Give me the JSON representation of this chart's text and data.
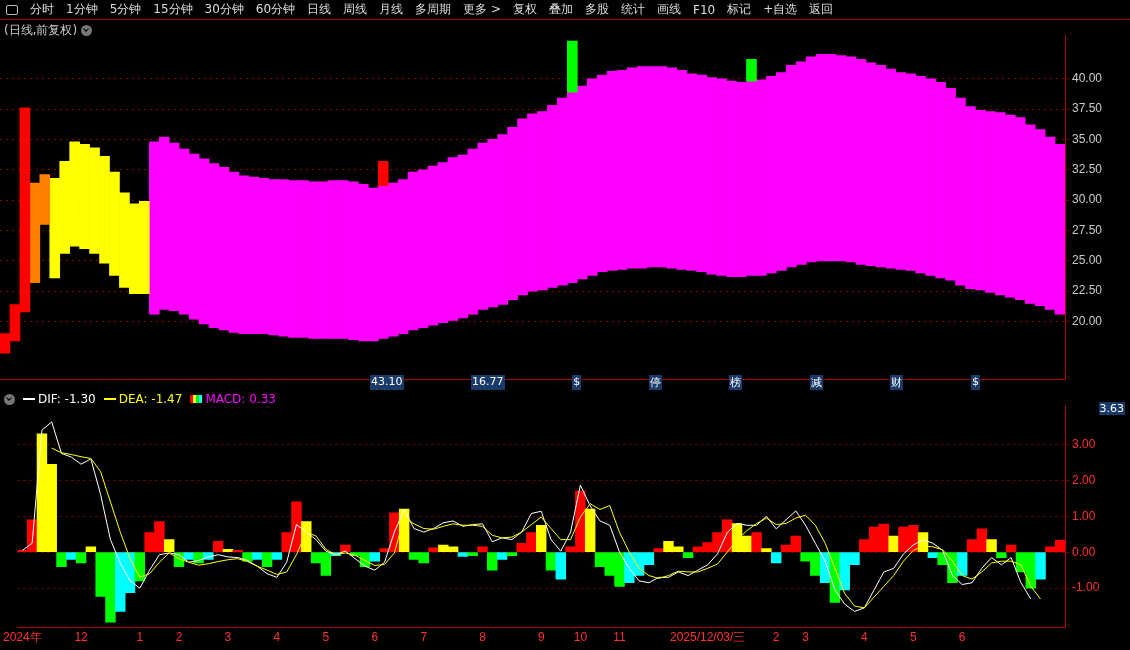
{
  "chart_data": [
    {
      "type": "other",
      "annotations": [
        "分时",
        "1分钟",
        "5分钟",
        "15分钟",
        "30分钟",
        "60分钟",
        "日线",
        "周线",
        "月线",
        "多周期",
        "更多 >",
        "复权",
        "叠加",
        "多股",
        "统计",
        "画线",
        "F10",
        "标记",
        "+自选",
        "返回"
      ]
    },
    {
      "type": "bar",
      "title": "(日线,前复权)",
      "tick_labels": "y",
      "grid": "y",
      "ylim": [
        15.2,
        43.6
      ],
      "yticks": [
        {
          "value": 20,
          "label": "20.00"
        },
        {
          "value": 22.5,
          "label": "22.50"
        },
        {
          "value": 25,
          "label": "25.00"
        },
        {
          "value": 27.5,
          "label": "27.50"
        },
        {
          "value": 30,
          "label": "30.00"
        },
        {
          "value": 32.5,
          "label": "32.50"
        },
        {
          "value": 35,
          "label": "35.00"
        },
        {
          "value": 37.5,
          "label": "37.50"
        },
        {
          "value": 40,
          "label": "40.00"
        }
      ],
      "annotations": [
        "43.10",
        "16.77",
        "$",
        "停",
        "榜",
        "减",
        "财",
        "$"
      ],
      "categories": [
        null,
        null,
        null,
        null,
        null,
        null,
        null,
        null,
        null,
        null,
        null,
        null,
        null,
        null,
        null,
        null,
        null,
        null,
        null,
        null,
        null,
        null,
        null,
        null,
        null,
        null,
        null,
        null,
        null,
        null,
        null,
        null,
        null,
        null,
        null,
        null,
        null,
        null,
        null,
        null,
        null,
        null,
        null,
        null,
        null,
        null,
        null,
        null,
        null,
        null,
        null,
        null,
        null,
        null,
        null,
        null,
        null,
        null,
        null,
        null,
        null,
        null,
        null,
        null,
        null,
        null,
        null,
        null,
        null,
        null,
        null,
        null,
        null,
        null,
        null,
        null,
        null,
        null,
        null,
        null,
        null,
        null,
        null,
        null,
        null,
        null,
        null,
        null,
        null,
        null,
        null,
        null,
        null,
        null,
        null,
        null,
        null,
        null,
        null,
        null,
        null,
        null,
        null,
        null,
        null,
        null,
        null
      ],
      "series": [
        {
          "color": "#ff00ff",
          "base": [
            null,
            null,
            null,
            null,
            null,
            null,
            null,
            null,
            null,
            null,
            null,
            null,
            null,
            null,
            null,
            20.6,
            21.0,
            20.9,
            20.6,
            20.2,
            19.8,
            19.5,
            19.3,
            19.1,
            19.0,
            19.0,
            19.0,
            18.9,
            18.8,
            18.7,
            18.7,
            18.6,
            18.6,
            18.6,
            18.6,
            18.5,
            18.4,
            18.4,
            18.6,
            18.8,
            19.0,
            19.3,
            19.5,
            19.7,
            19.9,
            20.1,
            20.3,
            20.6,
            21.0,
            21.2,
            21.4,
            21.8,
            22.2,
            22.5,
            22.6,
            22.8,
            23.0,
            23.2,
            23.5,
            23.8,
            24.1,
            24.2,
            24.3,
            24.4,
            24.4,
            24.5,
            24.5,
            24.4,
            24.3,
            24.2,
            24.1,
            23.9,
            23.8,
            23.7,
            23.7,
            23.8,
            23.8,
            24.0,
            24.2,
            24.5,
            24.7,
            24.9,
            25.0,
            25.0,
            25.0,
            24.9,
            24.7,
            24.6,
            24.5,
            24.4,
            24.3,
            24.2,
            24.0,
            23.8,
            23.6,
            23.4,
            23.0,
            22.7,
            22.6,
            22.4,
            22.2,
            22.0,
            21.8,
            21.5,
            21.3,
            21.0,
            20.6
          ],
          "values": [
            null,
            null,
            null,
            null,
            null,
            null,
            null,
            null,
            null,
            null,
            null,
            null,
            null,
            null,
            null,
            14.2,
            14.2,
            13.8,
            13.6,
            13.6,
            13.6,
            13.5,
            13.4,
            13.2,
            13.0,
            12.9,
            12.8,
            12.8,
            12.9,
            12.9,
            12.9,
            12.9,
            12.9,
            13.0,
            13.0,
            13.0,
            12.9,
            12.6,
            12.6,
            12.6,
            12.7,
            13.0,
            13.0,
            13.1,
            13.2,
            13.4,
            13.4,
            13.6,
            13.7,
            13.8,
            14.0,
            14.2,
            14.5,
            14.6,
            14.7,
            15.0,
            15.4,
            15.7,
            15.9,
            16.2,
            16.2,
            16.4,
            16.4,
            16.5,
            16.6,
            16.5,
            16.5,
            16.5,
            16.4,
            16.2,
            16.2,
            16.2,
            16.2,
            16.1,
            16.0,
            16.0,
            16.1,
            16.2,
            16.3,
            16.6,
            16.7,
            16.9,
            17.0,
            17.0,
            16.9,
            16.9,
            16.9,
            16.7,
            16.6,
            16.4,
            16.2,
            16.2,
            16.2,
            16.2,
            16.1,
            15.8,
            15.4,
            15.0,
            14.8,
            14.9,
            15.0,
            15.0,
            15.0,
            14.7,
            14.5,
            14.2,
            14.0
          ]
        },
        {
          "color": "#ffff00",
          "base": [
            null,
            null,
            null,
            null,
            null,
            23.6,
            25.6,
            26.2,
            26.0,
            25.6,
            24.8,
            23.8,
            22.8,
            22.3,
            22.3,
            null,
            null,
            null,
            null,
            null,
            null,
            null,
            null,
            null,
            null,
            null,
            null,
            null,
            null,
            null,
            null,
            null,
            null,
            null,
            null,
            null,
            null,
            null,
            null,
            null,
            null,
            null,
            null,
            null,
            null,
            null,
            null,
            null,
            null,
            null,
            null,
            null,
            null,
            null,
            null,
            null,
            null,
            null,
            null,
            null,
            null,
            null,
            null,
            null,
            null,
            null,
            null,
            null,
            null,
            null,
            null,
            null,
            null,
            null,
            null,
            null,
            null,
            null,
            null,
            null,
            null,
            null,
            null,
            null,
            null,
            null,
            null,
            null,
            null,
            null,
            null,
            null,
            null,
            null,
            null,
            null,
            null,
            null,
            null,
            null,
            null,
            null,
            null,
            null,
            null,
            null,
            null
          ],
          "values": [
            null,
            null,
            null,
            null,
            null,
            8.2,
            7.6,
            8.6,
            8.6,
            8.7,
            8.8,
            8.5,
            7.8,
            7.4,
            7.6,
            null,
            null,
            null,
            null,
            null,
            null,
            null,
            null,
            null,
            null,
            null,
            null,
            null,
            null,
            null,
            null,
            null,
            null,
            null,
            null,
            null,
            null,
            null,
            null,
            null,
            null,
            null,
            null,
            null,
            null,
            null,
            null,
            null,
            null,
            null,
            null,
            null,
            null,
            null,
            null,
            null,
            null,
            null,
            null,
            null,
            null,
            null,
            null,
            null,
            null,
            null,
            null,
            null,
            null,
            null,
            null,
            null,
            null,
            null,
            null,
            null,
            null,
            null,
            null,
            null,
            null,
            null,
            null,
            null,
            null,
            null,
            null,
            null,
            null,
            null,
            null,
            null,
            null,
            null,
            null,
            null,
            null,
            null,
            null,
            null,
            null,
            null,
            null,
            null,
            null,
            null,
            null
          ]
        },
        {
          "color": "#ff8000",
          "base": [
            null,
            null,
            null,
            23.2,
            28.0,
            null,
            null,
            null,
            null,
            null,
            null,
            null,
            null,
            null,
            null,
            null,
            null,
            null,
            null,
            null,
            null,
            null,
            null,
            null,
            null,
            null,
            null,
            null,
            null,
            null,
            null,
            null,
            null,
            null,
            null,
            null,
            null,
            null,
            null,
            null,
            null,
            null,
            null,
            null,
            null,
            null,
            null,
            null,
            null,
            null,
            null,
            null,
            null,
            null,
            null,
            null,
            null,
            null,
            null,
            null,
            null,
            null,
            null,
            null,
            null,
            null,
            null,
            null,
            null,
            null,
            null,
            null,
            null,
            null,
            null,
            null,
            null,
            null,
            null,
            null,
            null,
            null,
            null,
            null,
            null,
            null,
            null,
            null,
            null,
            null,
            null,
            null,
            null,
            null,
            null,
            null,
            null,
            null,
            null,
            null,
            null,
            null,
            null,
            null,
            null,
            null,
            null
          ],
          "values": [
            null,
            null,
            null,
            8.2,
            4.1,
            null,
            null,
            null,
            null,
            null,
            null,
            null,
            null,
            null,
            null,
            null,
            null,
            null,
            null,
            null,
            null,
            null,
            null,
            null,
            null,
            null,
            null,
            null,
            null,
            null,
            null,
            null,
            null,
            null,
            null,
            null,
            null,
            null,
            null,
            null,
            null,
            null,
            null,
            null,
            null,
            null,
            null,
            null,
            null,
            null,
            null,
            null,
            null,
            null,
            null,
            null,
            null,
            null,
            null,
            null,
            null,
            null,
            null,
            null,
            null,
            null,
            null,
            null,
            null,
            null,
            null,
            null,
            null,
            null,
            null,
            null,
            null,
            null,
            null,
            null,
            null,
            null,
            null,
            null,
            null,
            null,
            null,
            null,
            null,
            null,
            null,
            null,
            null,
            null,
            null,
            null,
            null,
            null,
            null,
            null,
            null,
            null,
            null,
            null,
            null,
            null,
            null
          ]
        },
        {
          "color": "#ff0000",
          "base": [
            17.4,
            18.4,
            20.8,
            null,
            null,
            null,
            null,
            null,
            null,
            null,
            null,
            null,
            null,
            null,
            null,
            null,
            null,
            null,
            null,
            null,
            null,
            null,
            null,
            null,
            null,
            null,
            null,
            null,
            null,
            null,
            null,
            null,
            null,
            null,
            null,
            null,
            null,
            null,
            31.2,
            null,
            null,
            null,
            null,
            null,
            null,
            null,
            null,
            null,
            null,
            null,
            null,
            null,
            null,
            null,
            null,
            null,
            null,
            null,
            null,
            null,
            null,
            null,
            null,
            null,
            null,
            null,
            null,
            null,
            null,
            null,
            null,
            null,
            null,
            null,
            null,
            null,
            null,
            null,
            null,
            null,
            null,
            null,
            null,
            null,
            null,
            null,
            null,
            null,
            null,
            null,
            null,
            null,
            null,
            null,
            null,
            null,
            null,
            null,
            null,
            null,
            null,
            null,
            null,
            null,
            null,
            null,
            null
          ],
          "values": [
            1.6,
            3.0,
            16.8,
            null,
            null,
            null,
            null,
            null,
            null,
            null,
            null,
            null,
            null,
            null,
            null,
            null,
            null,
            null,
            null,
            null,
            null,
            null,
            null,
            null,
            null,
            null,
            null,
            null,
            null,
            null,
            null,
            null,
            null,
            null,
            null,
            null,
            null,
            null,
            2.0,
            null,
            null,
            null,
            null,
            null,
            null,
            null,
            null,
            null,
            null,
            null,
            null,
            null,
            null,
            null,
            null,
            null,
            null,
            null,
            null,
            null,
            null,
            null,
            null,
            null,
            null,
            null,
            null,
            null,
            null,
            null,
            null,
            null,
            null,
            null,
            null,
            null,
            null,
            null,
            null,
            null,
            null,
            null,
            null,
            null,
            null,
            null,
            null,
            null,
            null,
            null,
            null,
            null,
            null,
            null,
            null,
            null,
            null,
            null,
            null,
            null,
            null,
            null,
            null,
            null,
            null,
            null,
            null
          ]
        },
        {
          "color": "#00ff00",
          "base": [
            null,
            null,
            null,
            null,
            null,
            null,
            null,
            null,
            null,
            null,
            null,
            null,
            null,
            null,
            null,
            null,
            null,
            null,
            null,
            null,
            null,
            null,
            null,
            null,
            null,
            null,
            null,
            null,
            null,
            null,
            null,
            null,
            null,
            null,
            null,
            null,
            null,
            null,
            null,
            null,
            null,
            null,
            null,
            null,
            null,
            null,
            null,
            null,
            null,
            null,
            null,
            null,
            null,
            null,
            null,
            null,
            null,
            38.9,
            null,
            null,
            null,
            null,
            null,
            null,
            null,
            null,
            null,
            null,
            null,
            null,
            null,
            null,
            null,
            null,
            null,
            39.8,
            null,
            null,
            null,
            null,
            null,
            null,
            null,
            null,
            null,
            null,
            null,
            null,
            null,
            null,
            null,
            null,
            null,
            null,
            null,
            null,
            null,
            null,
            null,
            null,
            null,
            null,
            null,
            null,
            null,
            null,
            null
          ],
          "values": [
            null,
            null,
            null,
            null,
            null,
            null,
            null,
            null,
            null,
            null,
            null,
            null,
            null,
            null,
            null,
            null,
            null,
            null,
            null,
            null,
            null,
            null,
            null,
            null,
            null,
            null,
            null,
            null,
            null,
            null,
            null,
            null,
            null,
            null,
            null,
            null,
            null,
            null,
            null,
            null,
            null,
            null,
            null,
            null,
            null,
            null,
            null,
            null,
            null,
            null,
            null,
            null,
            null,
            null,
            null,
            null,
            null,
            4.2,
            null,
            null,
            null,
            null,
            null,
            null,
            null,
            null,
            null,
            null,
            null,
            null,
            null,
            null,
            null,
            null,
            null,
            1.8,
            null,
            null,
            null,
            null,
            null,
            null,
            null,
            null,
            null,
            null,
            null,
            null,
            null,
            null,
            null,
            null,
            null,
            null,
            null,
            null,
            null,
            null,
            null,
            null,
            null,
            null,
            null,
            null,
            null,
            null,
            null
          ]
        }
      ]
    },
    {
      "type": "bar",
      "legend": "top left",
      "grid": "y",
      "marker": "none",
      "ylim": [
        -2.1,
        4.1
      ],
      "yticks": [
        {
          "value": -1,
          "label": "-1.00"
        },
        {
          "value": 0,
          "label": "0.00"
        },
        {
          "value": 1,
          "label": "1.00"
        },
        {
          "value": 2,
          "label": "2.00"
        },
        {
          "value": 3,
          "label": "3.00"
        }
      ],
      "annotations": [
        "3.63"
      ],
      "categories": [
        "2024年",
        null,
        null,
        null,
        null,
        null,
        "12",
        null,
        null,
        null,
        null,
        null,
        "1",
        null,
        null,
        null,
        "2",
        null,
        null,
        null,
        null,
        "3",
        null,
        null,
        null,
        null,
        "4",
        null,
        null,
        null,
        null,
        "5",
        null,
        null,
        null,
        null,
        "6",
        null,
        null,
        null,
        null,
        "7",
        null,
        null,
        null,
        null,
        null,
        "8",
        null,
        null,
        null,
        null,
        null,
        "9",
        null,
        null,
        null,
        "10",
        null,
        null,
        null,
        "11",
        null,
        null,
        null,
        null,
        null,
        null,
        null,
        null,
        "2025/12/03/三",
        null,
        null,
        null,
        null,
        null,
        null,
        "2",
        null,
        null,
        "3",
        null,
        null,
        null,
        null,
        null,
        "4",
        null,
        null,
        null,
        null,
        "5",
        null,
        null,
        null,
        null,
        "6",
        null,
        null,
        null,
        null,
        null,
        null,
        null,
        null,
        null,
        null
      ],
      "series": [
        {
          "name": "MACD: 0.33",
          "color": "#ff00ff",
          "type": "bar",
          "values": [
            0.05,
            0.9,
            3.3,
            2.45,
            -0.4,
            -0.2,
            -0.3,
            0.15,
            -1.23,
            -1.95,
            -1.65,
            -1.13,
            -0.8,
            0.55,
            0.85,
            0.35,
            -0.4,
            -0.2,
            -0.3,
            -0.2,
            0.3,
            0.08,
            0.05,
            -0.25,
            -0.2,
            -0.4,
            -0.2,
            0.55,
            1.4,
            0.85,
            -0.3,
            -0.65,
            -0.1,
            0.2,
            -0.1,
            -0.4,
            -0.25,
            0.1,
            1.1,
            1.2,
            -0.2,
            -0.3,
            0.12,
            0.2,
            0.15,
            -0.12,
            -0.1,
            0.15,
            -0.5,
            -0.2,
            -0.1,
            0.25,
            0.55,
            0.75,
            -0.5,
            -0.75,
            0.15,
            1.7,
            1.2,
            -0.4,
            -0.65,
            -0.95,
            -0.85,
            -0.65,
            -0.35,
            0.1,
            0.3,
            0.15,
            -0.15,
            0.15,
            0.27,
            0.55,
            0.9,
            0.8,
            0.45,
            0.55,
            0.1,
            -0.3,
            0.2,
            0.45,
            -0.25,
            -0.65,
            -0.85,
            -1.4,
            -1.05,
            -0.35,
            0.35,
            0.7,
            0.78,
            0.45,
            0.7,
            0.75,
            0.55,
            -0.15,
            -0.35,
            -0.85,
            -0.65,
            0.35,
            0.65,
            0.35,
            -0.15,
            0.2,
            -0.55,
            -1.0,
            -0.75,
            0.15,
            0.33
          ],
          "colors": [
            "#ff0000",
            "#ff0000",
            "#ffff00",
            "#ffff00",
            "#00ff00",
            "#00ffff",
            "#00ff00",
            "#ffff00",
            "#00ff00",
            "#00ff00",
            "#00ffff",
            "#00ffff",
            "#00ff00",
            "#ff0000",
            "#ff0000",
            "#ffff00",
            "#00ff00",
            "#00ffff",
            "#00ff00",
            "#00ffff",
            "#ff0000",
            "#ffff00",
            "#ff0000",
            "#00ff00",
            "#00ffff",
            "#00ff00",
            "#00ffff",
            "#ff0000",
            "#ff0000",
            "#ffff00",
            "#00ff00",
            "#00ff00",
            "#00ffff",
            "#ff0000",
            "#00ff00",
            "#00ff00",
            "#00ffff",
            "#ff0000",
            "#ff0000",
            "#ffff00",
            "#00ff00",
            "#00ff00",
            "#ff0000",
            "#ffff00",
            "#ffff00",
            "#00ffff",
            "#00ff00",
            "#ff0000",
            "#00ff00",
            "#00ffff",
            "#00ff00",
            "#ff0000",
            "#ff0000",
            "#ffff00",
            "#00ff00",
            "#00ffff",
            "#ff0000",
            "#ff0000",
            "#ffff00",
            "#00ff00",
            "#00ff00",
            "#00ff00",
            "#00ffff",
            "#00ffff",
            "#00ffff",
            "#ff0000",
            "#ffff00",
            "#ffff00",
            "#00ff00",
            "#ff0000",
            "#ff0000",
            "#ff0000",
            "#ff0000",
            "#ffff00",
            "#ffff00",
            "#ff0000",
            "#ffff00",
            "#00ffff",
            "#ff0000",
            "#ff0000",
            "#00ff00",
            "#00ff00",
            "#00ffff",
            "#00ff00",
            "#00ffff",
            "#00ffff",
            "#ff0000",
            "#ff0000",
            "#ff0000",
            "#ffff00",
            "#ff0000",
            "#ff0000",
            "#ffff00",
            "#00ffff",
            "#00ff00",
            "#00ff00",
            "#00ffff",
            "#ff0000",
            "#ff0000",
            "#ffff00",
            "#00ff00",
            "#ff0000",
            "#00ff00",
            "#00ff00",
            "#00ffff",
            "#ff0000",
            "#ff0000"
          ]
        },
        {
          "name": "DIF: -1.30",
          "type": "line",
          "color": "#ffffff",
          "values": [
            0.05,
            0.25,
            3.4,
            3.63,
            2.75,
            2.65,
            2.45,
            2.6,
            1.6,
            0.35,
            -0.3,
            -0.8,
            -1.0,
            -0.5,
            -0.07,
            -0.02,
            -0.07,
            -0.28,
            -0.23,
            -0.13,
            -0.07,
            -0.13,
            -0.15,
            -0.23,
            -0.39,
            -0.6,
            -0.7,
            -0.28,
            0.77,
            0.56,
            0.35,
            0.03,
            -0.07,
            0.03,
            -0.18,
            -0.39,
            -0.5,
            -0.28,
            0.56,
            1.19,
            0.66,
            0.56,
            0.66,
            0.82,
            0.87,
            0.72,
            0.77,
            0.79,
            0.29,
            0.4,
            0.35,
            0.56,
            1.08,
            1.14,
            0.35,
            0.03,
            0.56,
            1.87,
            1.29,
            0.87,
            0.75,
            0,
            -0.45,
            -0.8,
            -0.85,
            -0.7,
            -0.7,
            -0.55,
            -0.65,
            -0.5,
            -0.35,
            -0.05,
            0.55,
            0.8,
            0.75,
            0.75,
            1.0,
            0.65,
            0.9,
            1.15,
            0.75,
            0.25,
            -0.25,
            -1.05,
            -1.45,
            -1.65,
            -1.55,
            -1.05,
            -0.55,
            -0.45,
            -0.05,
            0.2,
            0.35,
            0.25,
            0.05,
            -0.65,
            -0.9,
            -0.85,
            -0.45,
            -0.15,
            -0.35,
            -0.15,
            -0.85,
            -1.3,
            null,
            null,
            null
          ]
        },
        {
          "name": "DEA: -1.47",
          "type": "line",
          "color": "#ffff00",
          "values": [
            null,
            null,
            null,
            2.9,
            2.77,
            2.72,
            2.66,
            2.61,
            2.24,
            1.4,
            0.56,
            -0.18,
            -0.7,
            -0.6,
            -0.28,
            -0.02,
            -0.18,
            -0.28,
            -0.36,
            -0.32,
            -0.26,
            -0.21,
            -0.18,
            -0.26,
            -0.39,
            -0.5,
            -0.62,
            -0.55,
            -0.07,
            0.56,
            0.45,
            0.08,
            -0.07,
            -0.02,
            -0.09,
            -0.23,
            -0.37,
            -0.34,
            -0.02,
            0.98,
            0.79,
            0.66,
            0.64,
            0.72,
            0.79,
            0.75,
            0.75,
            0.72,
            0.47,
            0.4,
            0.42,
            0.56,
            0.77,
            0.98,
            0.66,
            0.35,
            0.35,
            0.98,
            1.35,
            1.19,
            1.3,
            0.55,
            0,
            -0.45,
            -0.65,
            -0.73,
            -0.65,
            -0.53,
            -0.55,
            -0.55,
            -0.45,
            -0.33,
            0,
            0.35,
            0.6,
            0.8,
            0.95,
            0.77,
            0.8,
            0.95,
            1.03,
            0.75,
            0.25,
            -0.45,
            -1.15,
            -1.5,
            -1.55,
            -1.25,
            -0.95,
            -0.65,
            -0.25,
            0.05,
            0.17,
            0.15,
            0.07,
            -0.25,
            -0.65,
            -0.75,
            -0.55,
            -0.3,
            -0.25,
            -0.25,
            -0.35,
            -0.95,
            -1.3,
            null,
            null
          ]
        }
      ]
    }
  ]
}
